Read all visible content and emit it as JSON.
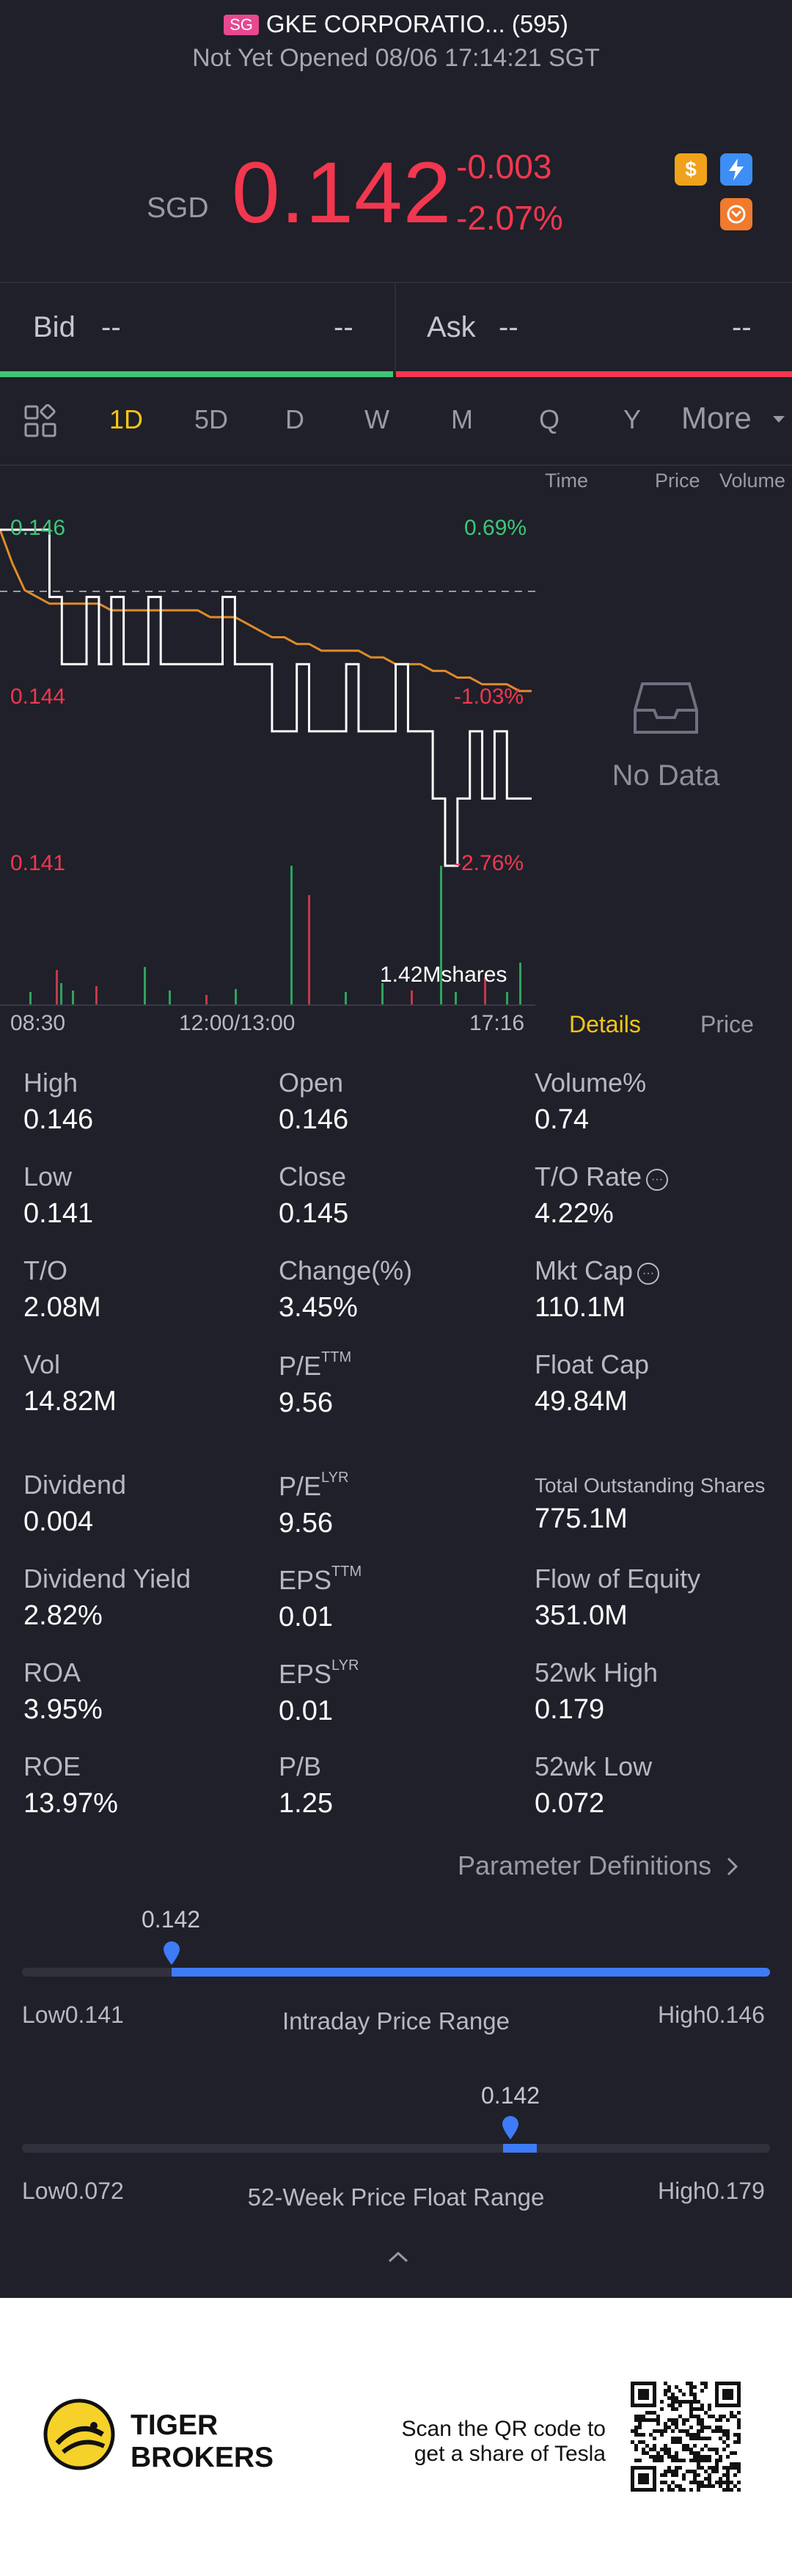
{
  "header": {
    "market_badge": "SG",
    "name": "GKE CORPORATIO... (595)",
    "status": "Not Yet Opened 08/06 17:14:21 SGT"
  },
  "quote": {
    "currency": "SGD",
    "price": "0.142",
    "change": "-0.003",
    "change_pct": "-2.07%",
    "icons": [
      "dollar-icon",
      "lightning-icon",
      "arrows-icon"
    ]
  },
  "bid": {
    "label": "Bid",
    "price": "--",
    "volume": "--"
  },
  "ask": {
    "label": "Ask",
    "price": "--",
    "volume": "--"
  },
  "tabs": [
    "1D",
    "5D",
    "D",
    "W",
    "M",
    "Q",
    "Y"
  ],
  "tabs_active": "1D",
  "tabs_more": "More",
  "trade_panel": {
    "columns": [
      "Time",
      "Price",
      "Volume"
    ],
    "empty_text": "No Data"
  },
  "chart": {
    "price_high_label": "0.146",
    "price_mid_label": "0.144",
    "price_low_label": "0.141",
    "pct_high_label": "0.69%",
    "pct_mid_label": "-1.03%",
    "pct_low_label": "-2.76%",
    "volume_label": "1.42Mshares",
    "x_labels": [
      "08:30",
      "12:00/13:00",
      "17:16"
    ]
  },
  "chart_data": {
    "type": "line",
    "y_range": [
      0.141,
      0.146
    ],
    "prev_close": 0.145,
    "series": [
      {
        "name": "price",
        "points": [
          0.146,
          0.146,
          0.146,
          0.146,
          0.145,
          0.144,
          0.144,
          0.145,
          0.144,
          0.145,
          0.144,
          0.144,
          0.145,
          0.144,
          0.144,
          0.144,
          0.144,
          0.144,
          0.145,
          0.144,
          0.144,
          0.144,
          0.143,
          0.143,
          0.144,
          0.143,
          0.143,
          0.143,
          0.144,
          0.143,
          0.143,
          0.143,
          0.144,
          0.143,
          0.143,
          0.142,
          0.141,
          0.142,
          0.143,
          0.142,
          0.143,
          0.142,
          0.142,
          0.142
        ]
      },
      {
        "name": "avg",
        "points": [
          0.146,
          0.1455,
          0.1451,
          0.145,
          0.1449,
          0.1449,
          0.1449,
          0.1449,
          0.1449,
          0.1448,
          0.1448,
          0.1448,
          0.1448,
          0.1448,
          0.1448,
          0.1448,
          0.1448,
          0.1447,
          0.1447,
          0.1447,
          0.1446,
          0.1445,
          0.1444,
          0.1444,
          0.1443,
          0.1443,
          0.1442,
          0.1442,
          0.1442,
          0.1442,
          0.1441,
          0.1441,
          0.144,
          0.144,
          0.144,
          0.1439,
          0.1439,
          0.1438,
          0.1438,
          0.1437,
          0.1437,
          0.1437,
          0.1436,
          0.1436
        ]
      }
    ]
  },
  "details_tabs": {
    "details": "Details",
    "price": "Price"
  },
  "stats": [
    [
      {
        "label": "High",
        "value": "0.146"
      },
      {
        "label": "Open",
        "value": "0.146"
      },
      {
        "label": "Volume%",
        "value": "0.74"
      }
    ],
    [
      {
        "label": "Low",
        "value": "0.141"
      },
      {
        "label": "Close",
        "value": "0.145"
      },
      {
        "label": "T/O Rate",
        "value": "4.22%"
      }
    ],
    [
      {
        "label": "T/O",
        "value": "2.08M"
      },
      {
        "label": "Change(%)",
        "value": "3.45%"
      },
      {
        "label": "Mkt Cap",
        "value": "110.1M"
      }
    ],
    [
      {
        "label": "Vol",
        "value": "14.82M"
      },
      {
        "label": "P/E",
        "sup": "TTM",
        "value": "9.56"
      },
      {
        "label": "Float Cap",
        "value": "49.84M"
      }
    ],
    [
      {
        "label": "Dividend",
        "value": "0.004"
      },
      {
        "label": "P/E",
        "sup": "LYR",
        "value": "9.56"
      },
      {
        "label": "Total Outstanding Shares",
        "value": "775.1M"
      }
    ],
    [
      {
        "label": "Dividend Yield",
        "value": "2.82%"
      },
      {
        "label": "EPS",
        "sup": "TTM",
        "value": "0.01"
      },
      {
        "label": "Flow of Equity",
        "value": "351.0M"
      }
    ],
    [
      {
        "label": "ROA",
        "value": "3.95%"
      },
      {
        "label": "EPS",
        "sup": "LYR",
        "value": "0.01"
      },
      {
        "label": "52wk High",
        "value": "0.179"
      }
    ],
    [
      {
        "label": "ROE",
        "value": "13.97%"
      },
      {
        "label": "P/B",
        "value": "1.25"
      },
      {
        "label": "52wk Low",
        "value": "0.072"
      }
    ]
  ],
  "param_link": "Parameter Definitions",
  "intraday_range": {
    "current": "0.142",
    "low_label": "Low",
    "low": "0.141",
    "high_label": "High",
    "high": "0.146",
    "title": "Intraday Price Range",
    "position": 0.2
  },
  "week52_range": {
    "current": "0.142",
    "low_label": "Low",
    "low": "0.072",
    "high_label": "High",
    "high": "0.179",
    "title": "52-Week Price Float Range",
    "position": 0.654
  },
  "footer": {
    "brand_line1": "TIGER",
    "brand_line2": "BROKERS",
    "qr_line1": "Scan the QR code to",
    "qr_line2": "get a share of Tesla"
  }
}
